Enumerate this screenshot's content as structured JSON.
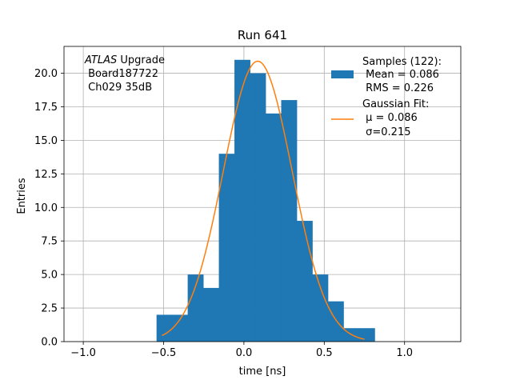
{
  "chart_data": {
    "type": "bar",
    "title": "Run 641",
    "xlabel": "time [ns]",
    "ylabel": "Entries",
    "xlim": [
      -1.12,
      1.35
    ],
    "ylim": [
      0,
      22
    ],
    "xticks": [
      "−1.0",
      "−0.5",
      "0.0",
      "0.5",
      "1.0"
    ],
    "xtick_values": [
      -1.0,
      -0.5,
      0.0,
      0.5,
      1.0
    ],
    "yticks": [
      "0.0",
      "2.5",
      "5.0",
      "7.5",
      "10.0",
      "12.5",
      "15.0",
      "17.5",
      "20.0"
    ],
    "ytick_values": [
      0,
      2.5,
      5,
      7.5,
      10,
      12.5,
      15,
      17.5,
      20
    ],
    "grid": true,
    "legend_position": "top-right",
    "histogram": {
      "bin_edges": [
        -0.544,
        -0.447,
        -0.35,
        -0.253,
        -0.156,
        -0.059,
        0.038,
        0.135,
        0.232,
        0.329,
        0.426,
        0.523,
        0.62,
        0.717,
        0.814
      ],
      "counts": [
        2,
        2,
        5,
        4,
        14,
        21,
        20,
        17,
        18,
        9,
        5,
        3,
        1,
        1
      ],
      "color": "#1f77b4"
    },
    "fit": {
      "mu": 0.086,
      "sigma": 0.215,
      "amplitude": 20.9,
      "x_range": [
        -0.51,
        0.75
      ],
      "color": "#ff7f0e"
    },
    "legend": [
      {
        "marker": "patch",
        "lines": [
          "Samples (122):",
          " Mean = 0.086",
          " RMS = 0.226"
        ]
      },
      {
        "marker": "line",
        "lines": [
          "Gaussian Fit:",
          " μ = 0.086",
          " σ=0.215"
        ]
      }
    ],
    "annotation": {
      "italic": "ATLAS",
      "first_line_rest": " Upgrade",
      "lines": [
        " Board187722",
        " Ch029 35dB"
      ]
    }
  }
}
